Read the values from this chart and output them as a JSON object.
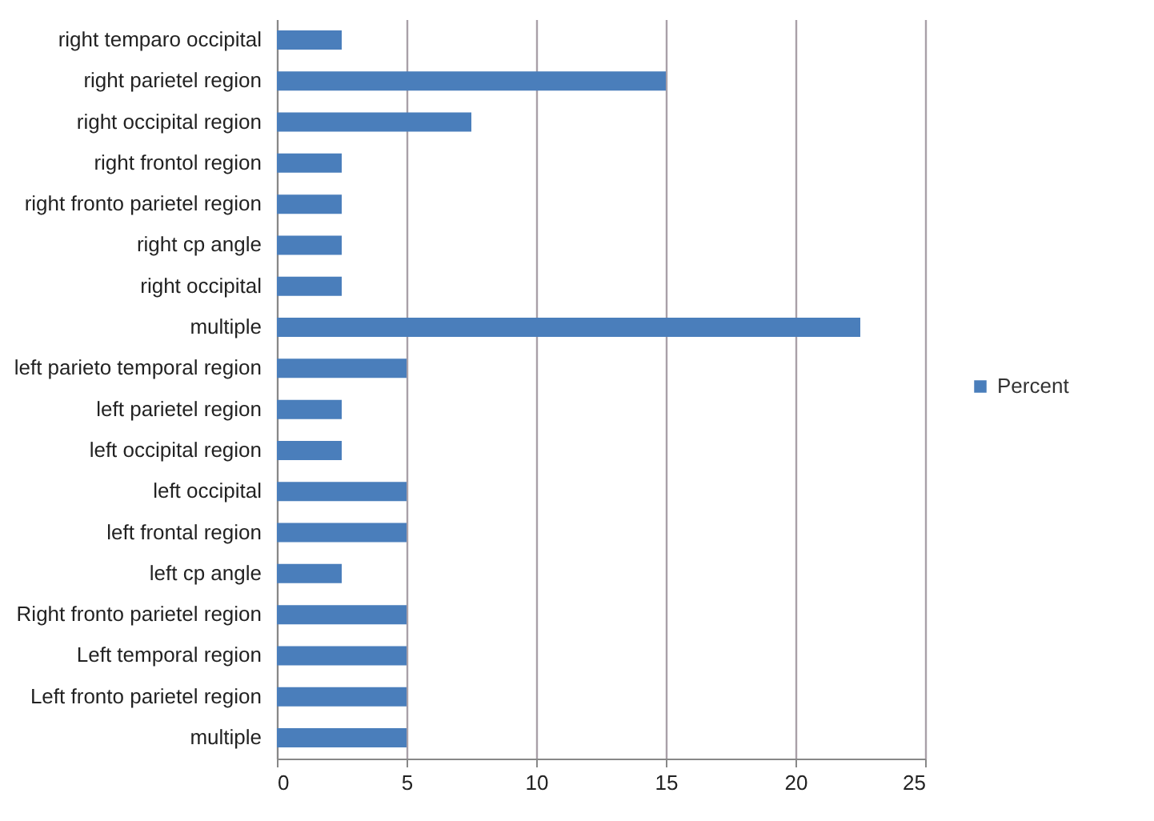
{
  "chart_data": {
    "type": "bar",
    "orientation": "horizontal",
    "categories": [
      "right temparo occipital",
      "right parietel region",
      "right occipital region",
      "right frontol region",
      "right fronto parietel region",
      "right cp angle",
      "right  occipital",
      "multiple",
      "left parieto temporal region",
      "left parietel region",
      "left occipital region",
      "left occipital",
      "left frontal region",
      "left cp angle",
      "Right fronto parietel region",
      "Left temporal region",
      "Left fronto parietel region",
      "multiple"
    ],
    "series": [
      {
        "name": "Percent",
        "color": "#4a7ebb",
        "values": [
          2.5,
          15,
          7.5,
          2.5,
          2.5,
          2.5,
          2.5,
          22.5,
          5,
          2.5,
          2.5,
          5,
          5,
          2.5,
          5,
          5,
          5,
          5
        ]
      }
    ],
    "xlim": [
      0,
      25
    ],
    "xticks": [
      0,
      5,
      10,
      15,
      20,
      25
    ],
    "grid": "x",
    "legend": "right"
  }
}
